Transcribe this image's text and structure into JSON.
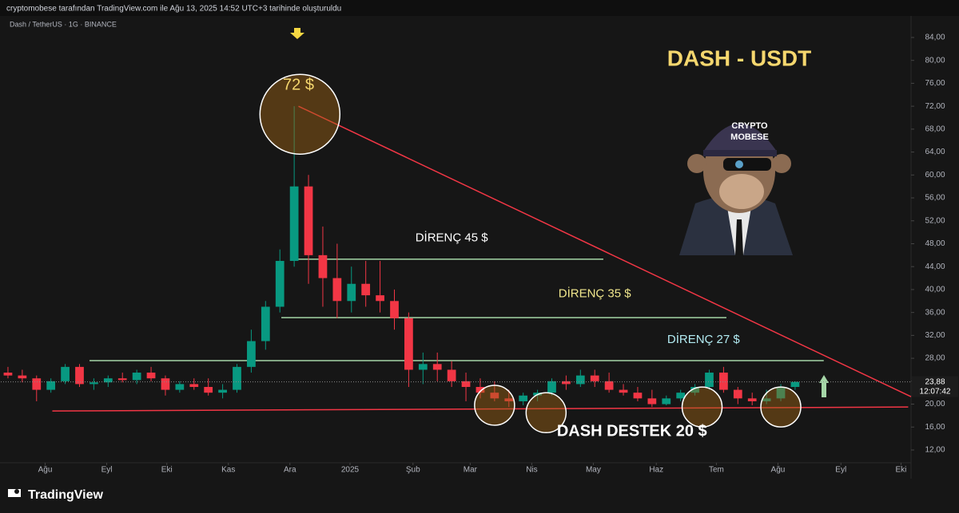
{
  "header": "cryptomobese tarafından TradingView.com ile Ağu 13, 2025 14:52 UTC+3 tarihinde oluşturuldu",
  "footer": "TradingView",
  "chart_data": {
    "type": "candlestick",
    "symbol": "Dash / TetherUS · 1G · BINANCE",
    "title": "DASH - USDT",
    "up_color": "#089981",
    "down_color": "#f23645",
    "open": [
      25.5,
      25,
      24.5,
      22.5,
      24,
      26.5,
      23.5,
      23.8,
      24.5,
      24.2,
      25.5,
      24.5,
      22.5,
      23.5,
      23,
      22,
      22.5,
      26.5,
      31,
      37,
      45,
      58,
      46,
      42,
      38,
      41,
      39,
      38,
      35,
      26,
      27,
      26,
      24,
      23,
      22,
      21,
      20.5,
      21.5,
      22,
      24,
      23.5,
      25,
      24,
      22.5,
      22,
      21,
      20,
      21,
      22,
      23,
      25.5,
      22.5,
      21,
      20.5,
      21,
      23
    ],
    "high": [
      26.5,
      26,
      25,
      24.5,
      27,
      27,
      24.5,
      25,
      25.5,
      26,
      26.5,
      25,
      24,
      24.5,
      24.5,
      23.5,
      27,
      33,
      38,
      47,
      72,
      60,
      51,
      48,
      44,
      45,
      45,
      40,
      36,
      29,
      29,
      27.5,
      25.5,
      24.5,
      24,
      22.5,
      22,
      22.5,
      24.5,
      25,
      26,
      26,
      25.5,
      23.5,
      23,
      22.5,
      21.5,
      22.5,
      23.5,
      26,
      26.5,
      23,
      22,
      22.5,
      23.5,
      24
    ],
    "low": [
      24.5,
      23.8,
      20.5,
      22,
      23.5,
      23,
      22.5,
      23,
      23.8,
      23.5,
      24,
      21.5,
      22,
      22.5,
      21.5,
      21,
      22,
      25.5,
      29.5,
      36,
      44,
      41,
      37,
      35,
      36,
      37,
      36,
      33,
      23,
      23.5,
      24,
      23,
      20.5,
      21,
      20.5,
      19.5,
      19.8,
      20.5,
      21.5,
      22.5,
      23,
      23,
      22,
      21.5,
      20.5,
      19.5,
      19.8,
      20.5,
      21.5,
      22.5,
      22,
      20,
      19.8,
      20,
      20.5,
      22.5
    ],
    "close": [
      25,
      24.5,
      22.5,
      24,
      26.5,
      23.5,
      23.8,
      24.5,
      24.2,
      25.5,
      24.5,
      22.5,
      23.5,
      23,
      22,
      22.5,
      26.5,
      31,
      37,
      45,
      58,
      46,
      42,
      38,
      41,
      39,
      38,
      35,
      26,
      27,
      26,
      24,
      23,
      22,
      21,
      20.5,
      21.5,
      22,
      24,
      23.5,
      25,
      24,
      22.5,
      22,
      21,
      20,
      21,
      22,
      23,
      25.5,
      22.5,
      21,
      20.5,
      21,
      23,
      23.88
    ],
    "last_price": {
      "value": 23.88,
      "label": "23,88"
    },
    "countdown": "12:07:42",
    "xlim": [
      -0.5,
      63.1
    ],
    "xticks": [
      {
        "value": 2.6,
        "label": "Ağu"
      },
      {
        "value": 6.9,
        "label": "Eyl"
      },
      {
        "value": 11.1,
        "label": "Eki"
      },
      {
        "value": 15.4,
        "label": "Kas"
      },
      {
        "value": 19.7,
        "label": "Ara"
      },
      {
        "value": 23.9,
        "label": "2025"
      },
      {
        "value": 28.3,
        "label": "Şub"
      },
      {
        "value": 32.3,
        "label": "Mar"
      },
      {
        "value": 36.6,
        "label": "Nis"
      },
      {
        "value": 40.9,
        "label": "May"
      },
      {
        "value": 45.3,
        "label": "Haz"
      },
      {
        "value": 49.5,
        "label": "Tem"
      },
      {
        "value": 53.8,
        "label": "Ağu"
      },
      {
        "value": 58.2,
        "label": "Eyl"
      },
      {
        "value": 62.4,
        "label": "Eki"
      }
    ],
    "ylim": [
      9.77,
      87.06
    ],
    "yticks": [
      {
        "value": 12,
        "label": "12,00"
      },
      {
        "value": 16,
        "label": "16,00"
      },
      {
        "value": 20,
        "label": "20,00"
      },
      {
        "value": 24,
        "label": "24,00"
      },
      {
        "value": 28,
        "label": "28,00"
      },
      {
        "value": 32,
        "label": "32,00"
      },
      {
        "value": 36,
        "label": "36,00"
      },
      {
        "value": 40,
        "label": "40,00"
      },
      {
        "value": 44,
        "label": "44,00"
      },
      {
        "value": 48,
        "label": "48,00"
      },
      {
        "value": 52,
        "label": "52,00"
      },
      {
        "value": 56,
        "label": "56,00"
      },
      {
        "value": 60,
        "label": "60,00"
      },
      {
        "value": 64,
        "label": "64,00"
      },
      {
        "value": 68,
        "label": "68,00"
      },
      {
        "value": 72,
        "label": "72,00"
      },
      {
        "value": 76,
        "label": "76,00"
      },
      {
        "value": 80,
        "label": "80,00"
      },
      {
        "value": 84,
        "label": "84,00"
      }
    ],
    "trend_lines": [
      {
        "x": [
          3.1,
          62.9
        ],
        "y": [
          18.8,
          19.5
        ],
        "color": "#f23645"
      },
      {
        "x": [
          20.3,
          63.1
        ],
        "y": [
          72,
          21.3
        ],
        "color": "#f23645"
      },
      {
        "x": [
          20,
          41.6
        ],
        "y": [
          45.3,
          45.3
        ],
        "color": "#a5d6a7"
      },
      {
        "x": [
          19.1,
          50.2
        ],
        "y": [
          35.1,
          35.1
        ],
        "color": "#a5d6a7"
      },
      {
        "x": [
          5.7,
          57
        ],
        "y": [
          27.6,
          27.6
        ],
        "color": "#a5d6a7"
      }
    ],
    "circles": [
      {
        "x": 20.4,
        "y": 70.6
      },
      {
        "x": 34,
        "y": 19.8
      },
      {
        "x": 37.6,
        "y": 18.5
      },
      {
        "x": 48.5,
        "y": 19.5
      },
      {
        "x": 54,
        "y": 19.5
      }
    ],
    "annotations": [
      {
        "text": "72 $",
        "x": 20.3,
        "y": 75.6,
        "color": "#f5d76e"
      },
      {
        "text": "DİRENÇ 45 $",
        "x": 31,
        "y": 49,
        "color": "#ffffff"
      },
      {
        "text": "DİRENÇ 35 $",
        "x": 41,
        "y": 39.2,
        "color": "#f0e68c"
      },
      {
        "text": "DİRENÇ 27 $",
        "x": 48.6,
        "y": 31.2,
        "color": "#b2ebf2"
      },
      {
        "text": "DASH DESTEK 20 $",
        "x": 43.6,
        "y": 15.2,
        "color": "#ffffff"
      }
    ],
    "badge": [
      "CRYPTO",
      "MOBESE"
    ]
  }
}
